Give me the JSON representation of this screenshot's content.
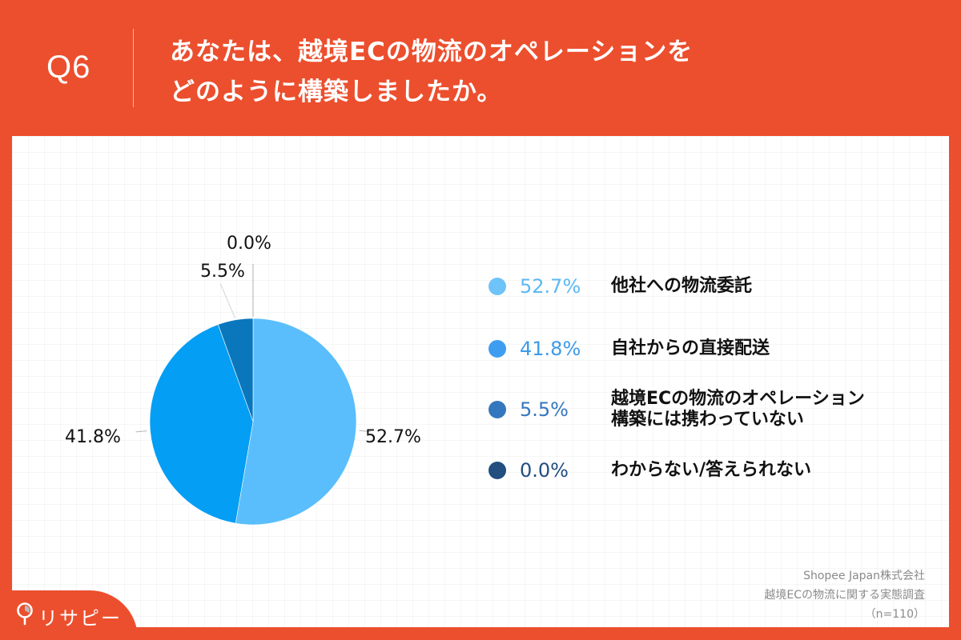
{
  "header": {
    "question_number": "Q6",
    "title_lines": [
      "あなたは、越境ECの物流のオペレーションを",
      "どのように構築しましたか。"
    ]
  },
  "chart_data": {
    "type": "pie",
    "title": "あなたは、越境ECの物流のオペレーションをどのように構築しましたか。",
    "categories": [
      "他社への物流委託",
      "自社からの直接配送",
      "越境ECの物流のオペレーション構築には携わっていない",
      "わからない/答えられない"
    ],
    "values": [
      52.7,
      41.8,
      5.5,
      0.0
    ],
    "value_labels": [
      "52.7%",
      "41.8%",
      "5.5%",
      "0.0%"
    ],
    "colors": [
      "#5BBEFC",
      "#049EF4",
      "#0A77BD",
      "#1E4D80"
    ],
    "start_angle_deg": 0,
    "direction": "clockwise",
    "legend_position": "right",
    "sample_size": "n=110"
  },
  "pie_labels": {
    "s0": "52.7%",
    "s1": "41.8%",
    "s2": "5.5%",
    "s3": "0.0%"
  },
  "legend": {
    "items": [
      {
        "pct": "52.7%",
        "label_lines": [
          "他社への物流委託"
        ],
        "dot_color": "#6EC3F8",
        "pct_color": "#5CB8F4"
      },
      {
        "pct": "41.8%",
        "label_lines": [
          "自社からの直接配送"
        ],
        "dot_color": "#3E9DF0",
        "pct_color": "#3E9AEA"
      },
      {
        "pct": "5.5%",
        "label_lines": [
          "越境ECの物流のオペレーション",
          "構築には携わっていない"
        ],
        "dot_color": "#3577BE",
        "pct_color": "#3577BE"
      },
      {
        "pct": "0.0%",
        "label_lines": [
          "わからない/答えられない"
        ],
        "dot_color": "#224E80",
        "pct_color": "#224E80"
      }
    ]
  },
  "source": {
    "lines": [
      "Shopee Japan株式会社",
      "越境ECの物流に関する実態調査",
      "（n=110）"
    ]
  },
  "logo": {
    "text": "リサピー"
  }
}
